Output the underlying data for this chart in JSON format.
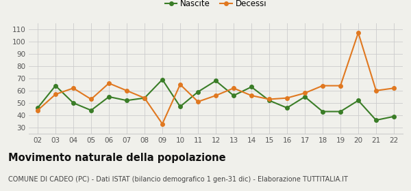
{
  "years": [
    "02",
    "03",
    "04",
    "05",
    "06",
    "07",
    "08",
    "09",
    "10",
    "11",
    "12",
    "13",
    "14",
    "15",
    "16",
    "17",
    "18",
    "19",
    "20",
    "21",
    "22"
  ],
  "nascite": [
    46,
    64,
    50,
    44,
    55,
    52,
    54,
    69,
    47,
    59,
    68,
    56,
    63,
    52,
    46,
    55,
    43,
    43,
    52,
    36,
    39
  ],
  "decessi": [
    44,
    57,
    62,
    53,
    66,
    60,
    54,
    33,
    65,
    51,
    56,
    62,
    56,
    53,
    54,
    58,
    64,
    64,
    107,
    60,
    62
  ],
  "nascite_color": "#3a7d27",
  "decessi_color": "#e07820",
  "background_color": "#f0f0eb",
  "grid_color": "#cccccc",
  "ylim": [
    25,
    115
  ],
  "yticks": [
    30,
    40,
    50,
    60,
    70,
    80,
    90,
    100,
    110
  ],
  "title": "Movimento naturale della popolazione",
  "subtitle": "COMUNE DI CADEO (PC) - Dati ISTAT (bilancio demografico 1 gen-31 dic) - Elaborazione TUTTITALIA.IT",
  "legend_nascite": "Nascite",
  "legend_decessi": "Decessi",
  "title_fontsize": 10.5,
  "subtitle_fontsize": 7.0,
  "tick_fontsize": 7.5,
  "legend_fontsize": 8.5,
  "marker_size": 4,
  "line_width": 1.5
}
